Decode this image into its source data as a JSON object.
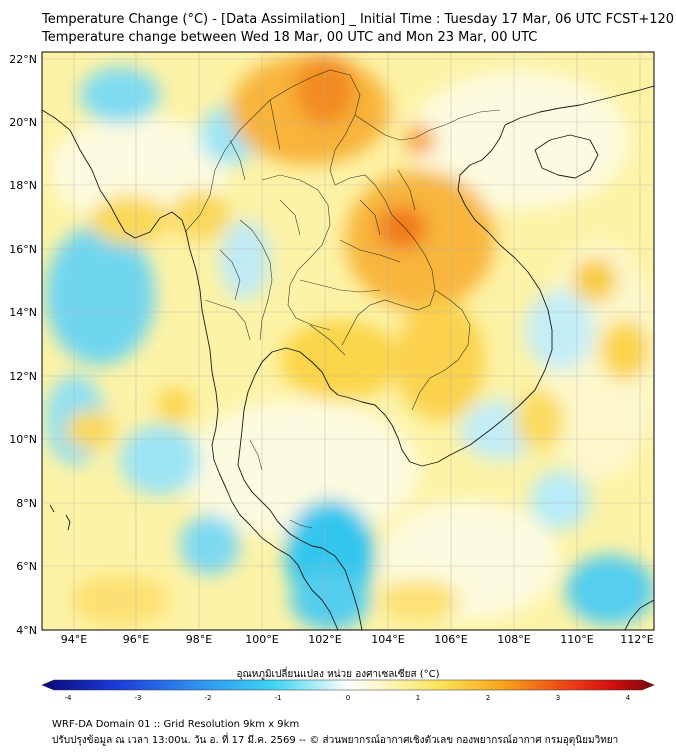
{
  "title_line1": "Temperature Change (°C) - [Data Assimilation] _ Initial Time : Tuesday 17 Mar, 06 UTC FCST+120",
  "title_line2": "Temperature change between Wed 18 Mar, 00 UTC and Mon 23 Mar, 00 UTC",
  "lat_ticks": [
    "22°N",
    "20°N",
    "18°N",
    "16°N",
    "14°N",
    "12°N",
    "10°N",
    "8°N",
    "6°N",
    "4°N"
  ],
  "lon_ticks": [
    "94°E",
    "96°E",
    "98°E",
    "100°E",
    "102°E",
    "104°E",
    "106°E",
    "108°E",
    "110°E",
    "112°E"
  ],
  "colorbar": {
    "title": "อุณหภูมิเปลี่ยนแปลง หน่วย องศาเซลเซียส (°C)",
    "ticks": [
      "-4",
      "-3",
      "-2",
      "-1",
      "0",
      "1",
      "2",
      "3",
      "4"
    ],
    "min": -4,
    "max": 4
  },
  "footer_line1": "WRF-DA Domain 01 :: Grid Resolution 9km x 9km",
  "footer_line2": "ปรับปรุงข้อมูล ณ เวลา 13:00น. วัน อ. ที่ 17 มี.ค. 2569 -- © ส่วนพยากรณ์อากาศเชิงตัวเลข กองพยากรณ์อากาศ กรมอุตุนิยมวิทยา",
  "colors": {
    "cold": "#22c4ee",
    "neutral": "#fdfbd8",
    "warm": "#fbe25a",
    "hot": "#f6a21c",
    "hottest": "#f07818",
    "coast": "#1a1a1a"
  }
}
